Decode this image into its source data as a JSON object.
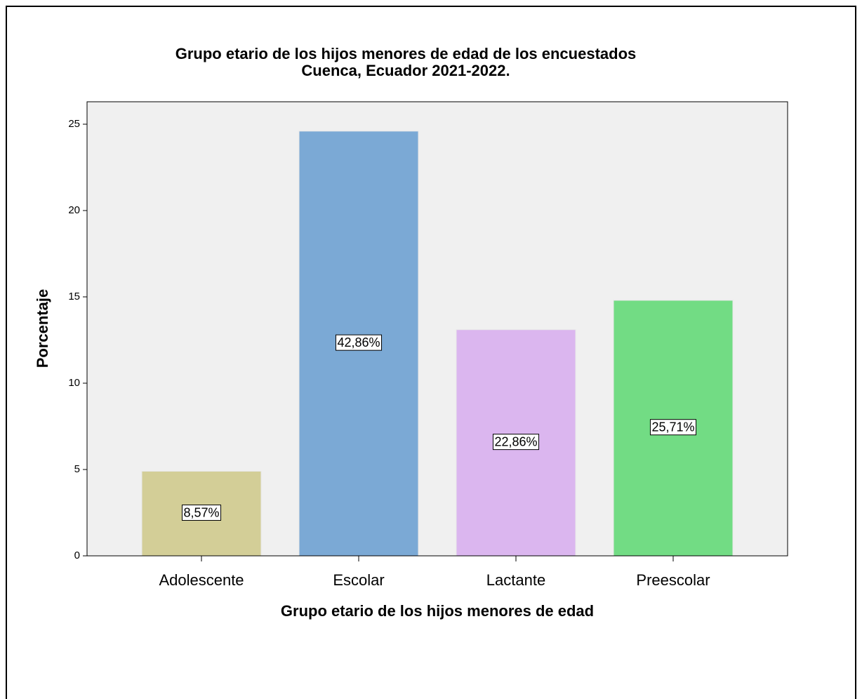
{
  "chart_data": {
    "type": "bar",
    "title": "Grupo etario de los hijos menores de edad de los encuestados",
    "subtitle": "Cuenca, Ecuador 2021-2022.",
    "x_label": "Grupo etario de los hijos menores de edad",
    "y_label": "Porcentaje",
    "categories": [
      "Adolescente",
      "Escolar",
      "Lactante",
      "Preescolar"
    ],
    "values": [
      4.9,
      24.6,
      13.1,
      14.8
    ],
    "annotations": [
      "8,57%",
      "42,86%",
      "22,86%",
      "25,71%"
    ],
    "colors": [
      "#d3ce97",
      "#7ba9d5",
      "#dbb6ef",
      "#72dc84"
    ],
    "ylim": [
      0,
      26.3
    ],
    "yticks": [
      0,
      5,
      10,
      15,
      20,
      25
    ]
  }
}
